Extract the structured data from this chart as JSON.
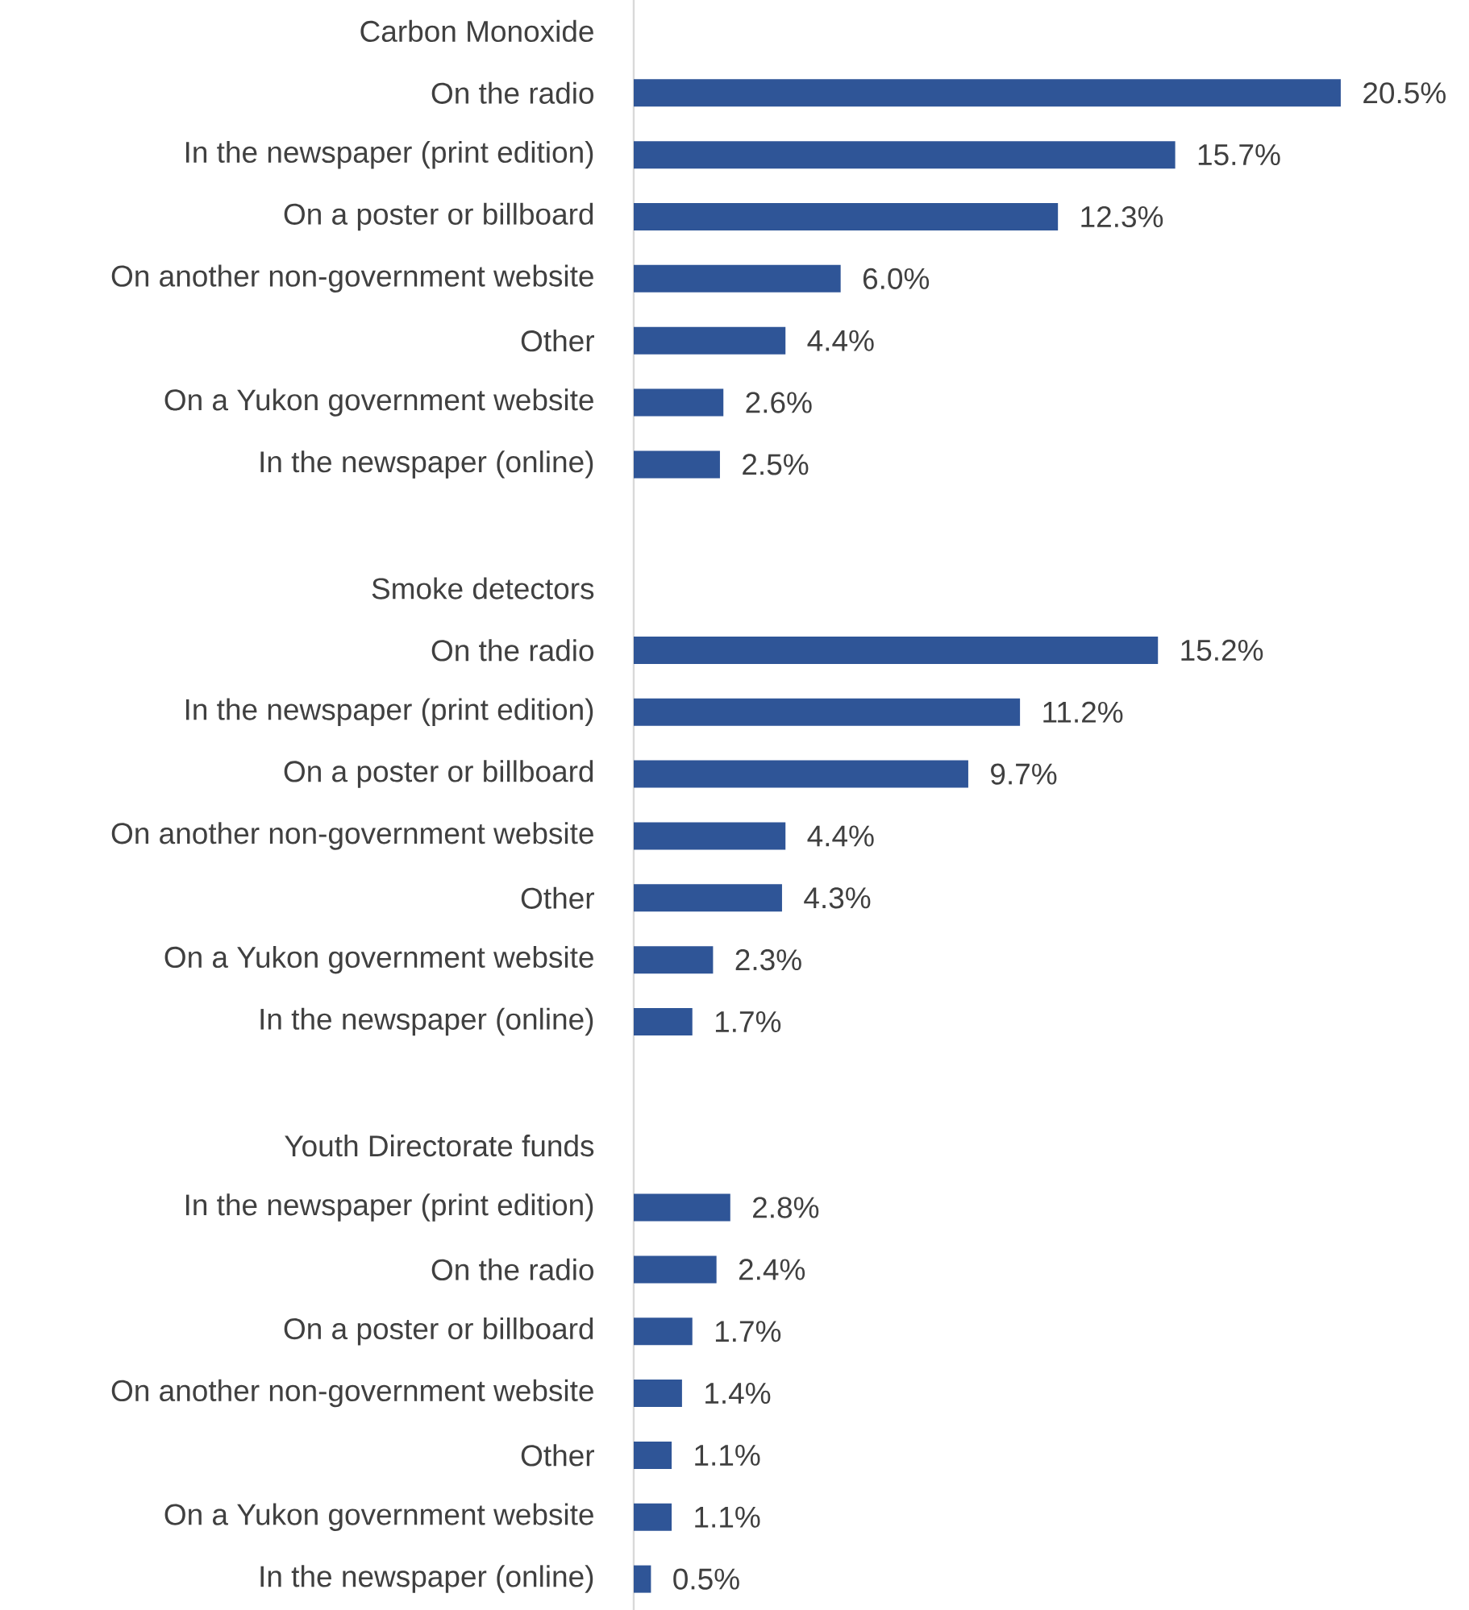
{
  "chart_data": {
    "type": "bar",
    "orientation": "horizontal",
    "categories": [
      "Carbon Monoxide",
      "On the radio",
      "In the newspaper (print edition)",
      "On a poster or billboard",
      "On another non-government website",
      "Other",
      "On a Yukon government website",
      "In the newspaper (online)",
      null,
      "Smoke detectors",
      "On the radio",
      "In the newspaper (print edition)",
      "On a poster or billboard",
      "On another non-government website",
      "Other",
      "On a Yukon government website",
      "In the newspaper (online)",
      null,
      "Youth Directorate funds",
      "In the newspaper (print edition)",
      "On the radio",
      "On a poster or billboard",
      "On another non-government website",
      "Other",
      "On a Yukon government website",
      "In the newspaper (online)"
    ],
    "values": [
      null,
      20.5,
      15.7,
      12.3,
      6.0,
      4.4,
      2.6,
      2.5,
      null,
      null,
      15.2,
      11.2,
      9.7,
      4.4,
      4.3,
      2.3,
      1.7,
      null,
      null,
      2.8,
      2.4,
      1.7,
      1.4,
      1.1,
      1.1,
      0.5
    ],
    "value_labels": [
      null,
      "20.5%",
      "15.7%",
      "12.3%",
      "6.0%",
      "4.4%",
      "2.6%",
      "2.5%",
      null,
      null,
      "15.2%",
      "11.2%",
      "9.7%",
      "4.4%",
      "4.3%",
      "2.3%",
      "1.7%",
      null,
      null,
      "2.8%",
      "2.4%",
      "1.7%",
      "1.4%",
      "1.1%",
      "1.1%",
      "0.5%"
    ],
    "color": "#2f5597"
  }
}
